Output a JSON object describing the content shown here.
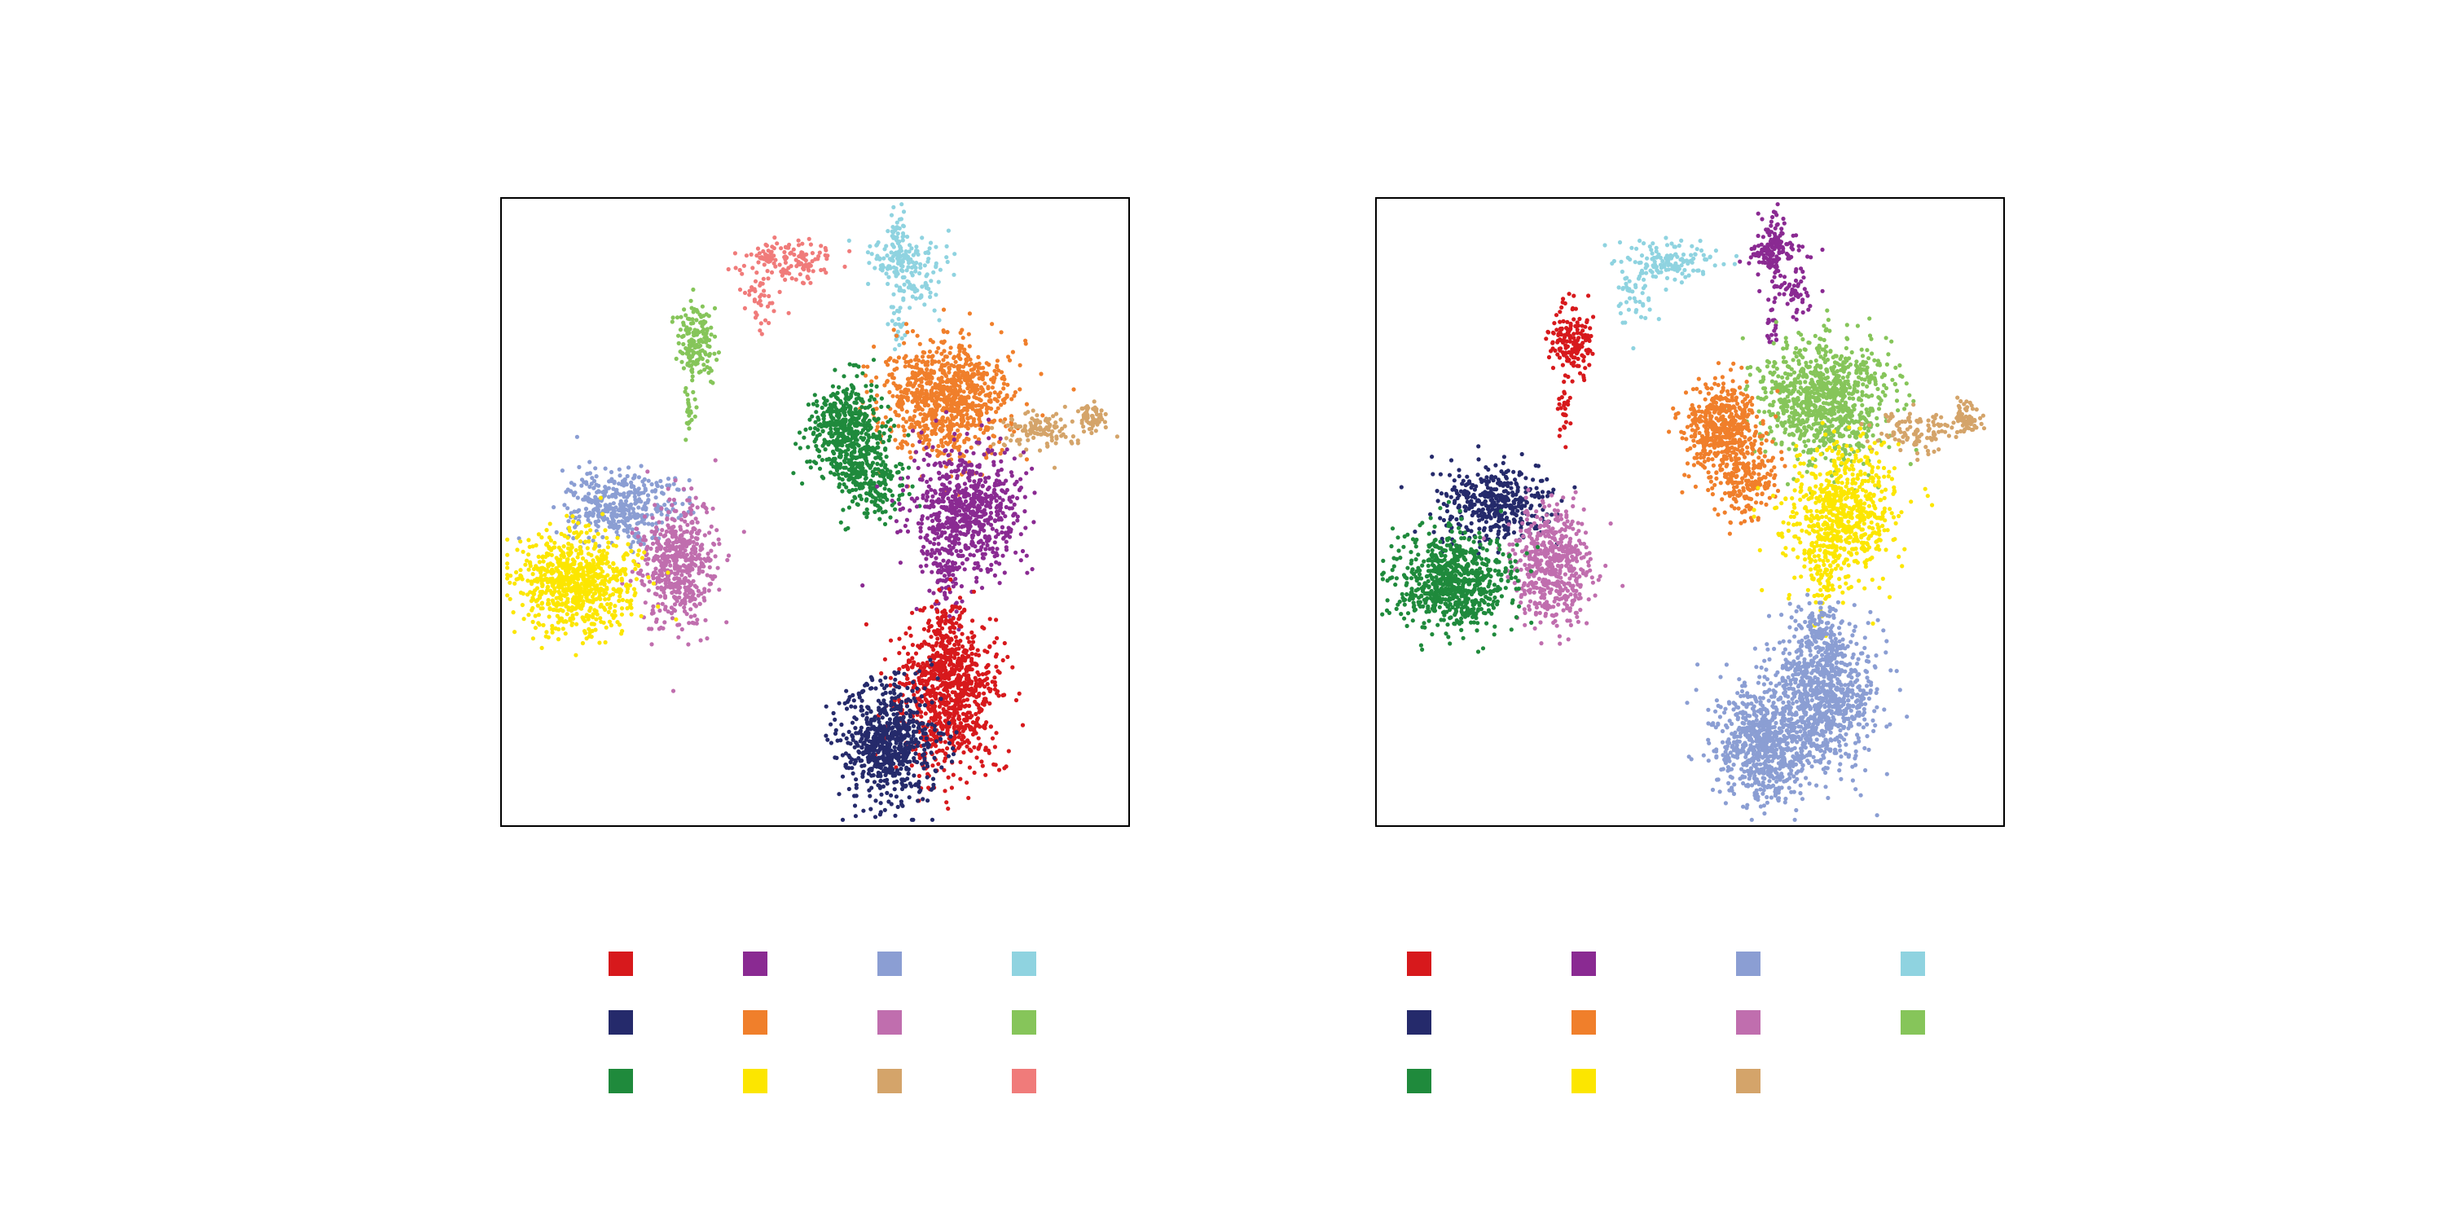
{
  "palette": {
    "red": "#d7191c",
    "navy": "#252a6b",
    "green": "#1f8a3c",
    "purple": "#8a2a92",
    "orange": "#f07f2b",
    "yellow": "#fce600",
    "lavender": "#8b9ed3",
    "pink": "#c06eae",
    "tan": "#d4a46a",
    "cyan": "#8fd3e0",
    "lightgreen": "#86c55a",
    "salmon": "#f07b7a"
  },
  "chart_data": [
    {
      "type": "scatter",
      "title": "",
      "xlabel": "",
      "ylabel": "",
      "xlim": [
        0,
        100
      ],
      "ylim": [
        0,
        100
      ],
      "grid": false,
      "legend": "bottom",
      "legend_swatches": [
        "red",
        "navy",
        "green",
        "purple",
        "orange",
        "yellow",
        "lavender",
        "pink",
        "tan",
        "cyan",
        "lightgreen",
        "salmon"
      ],
      "series": [
        {
          "color": "salmon",
          "clusters": [
            [
              46,
              90,
              5,
              2,
              140
            ],
            [
              41,
              84,
              2,
              3.5,
              40
            ]
          ]
        },
        {
          "color": "cyan",
          "clusters": [
            [
              64,
              90,
              4,
              2.2,
              100
            ],
            [
              63.5,
              93,
              1.2,
              3.5,
              60
            ],
            [
              66,
              85,
              2.5,
              2,
              50
            ],
            [
              63,
              79,
              1,
              2.5,
              20
            ]
          ]
        },
        {
          "color": "lightgreen",
          "clusters": [
            [
              31,
              77,
              2.2,
              4,
              160
            ],
            [
              30,
              66,
              0.8,
              4,
              25
            ]
          ]
        },
        {
          "color": "orange",
          "clusters": [
            [
              71,
              68,
              7,
              6,
              900
            ]
          ]
        },
        {
          "color": "tan",
          "clusters": [
            [
              86,
              63,
              5,
              2,
              110
            ],
            [
              94,
              65,
              1.6,
              1.6,
              60
            ]
          ]
        },
        {
          "color": "green",
          "clusters": [
            [
              55,
              63,
              4,
              5,
              500
            ],
            [
              59,
              55,
              3.5,
              4,
              200
            ]
          ]
        },
        {
          "color": "purple",
          "clusters": [
            [
              74,
              50,
              6,
              7,
              700
            ],
            [
              71,
              39,
              1.5,
              4,
              60
            ]
          ]
        },
        {
          "color": "lavender",
          "clusters": [
            [
              19,
              51,
              6,
              4,
              400
            ]
          ]
        },
        {
          "color": "pink",
          "clusters": [
            [
              28,
              42,
              4,
              6.5,
              520
            ]
          ]
        },
        {
          "color": "yellow",
          "clusters": [
            [
              12,
              39,
              6,
              5,
              750
            ]
          ]
        },
        {
          "color": "red",
          "clusters": [
            [
              71,
              21,
              5.2,
              8,
              900
            ],
            [
              71,
              32,
              2,
              3,
              60
            ]
          ]
        },
        {
          "color": "navy",
          "clusters": [
            [
              61.5,
              13,
              5,
              6,
              700
            ]
          ]
        }
      ]
    },
    {
      "type": "scatter",
      "title": "",
      "xlabel": "",
      "ylabel": "",
      "xlim": [
        0,
        100
      ],
      "ylim": [
        0,
        100
      ],
      "grid": false,
      "legend": "bottom",
      "legend_swatches": [
        "red",
        "navy",
        "green",
        "purple",
        "orange",
        "yellow",
        "lavender",
        "pink",
        "tan",
        "cyan",
        "lightgreen"
      ],
      "series": [
        {
          "color": "cyan",
          "clusters": [
            [
              46,
              90,
              5,
              2,
              140
            ],
            [
              41,
              84,
              2,
              3.5,
              40
            ]
          ]
        },
        {
          "color": "purple",
          "clusters": [
            [
              64,
              91,
              3.5,
              2,
              80
            ],
            [
              63.5,
              93,
              1.2,
              3.5,
              80
            ],
            [
              66,
              85,
              2.5,
              2,
              50
            ],
            [
              63,
              79,
              1,
              2.5,
              20
            ]
          ]
        },
        {
          "color": "red",
          "clusters": [
            [
              31,
              77,
              2.2,
              4,
              160
            ],
            [
              30,
              66,
              0.8,
              4,
              25
            ]
          ]
        },
        {
          "color": "lightgreen",
          "clusters": [
            [
              71,
              68,
              7,
              6,
              900
            ]
          ]
        },
        {
          "color": "tan",
          "clusters": [
            [
              86,
              63,
              5,
              2,
              110
            ],
            [
              94,
              65,
              1.6,
              1.6,
              60
            ]
          ]
        },
        {
          "color": "orange",
          "clusters": [
            [
              55,
              63,
              4,
              5,
              500
            ],
            [
              59,
              55,
              3.5,
              4,
              200
            ]
          ]
        },
        {
          "color": "yellow",
          "clusters": [
            [
              74,
              50,
              6,
              7,
              700
            ],
            [
              71,
              39,
              1.5,
              4,
              60
            ]
          ]
        },
        {
          "color": "navy",
          "clusters": [
            [
              19,
              51,
              6,
              4,
              400
            ]
          ]
        },
        {
          "color": "pink",
          "clusters": [
            [
              28,
              42,
              4,
              6.5,
              520
            ]
          ]
        },
        {
          "color": "green",
          "clusters": [
            [
              12,
              39,
              6,
              5,
              750
            ]
          ]
        },
        {
          "color": "lavender",
          "clusters": [
            [
              71,
              21,
              5.2,
              8,
              900
            ],
            [
              71,
              32,
              2,
              3,
              60
            ],
            [
              61.5,
              13,
              5,
              6,
              700
            ]
          ]
        }
      ]
    }
  ]
}
